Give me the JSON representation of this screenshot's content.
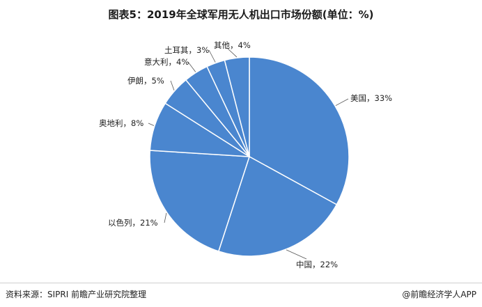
{
  "title": "图表5：2019年全球军用无人机出口市场份额(单位：%)",
  "chart_data": {
    "type": "pie",
    "title": "图表5：2019年全球军用无人机出口市场份额(单位：%)",
    "slices": [
      {
        "label": "美国",
        "value": 33,
        "text": "美国，33%"
      },
      {
        "label": "中国",
        "value": 22,
        "text": "中国，22%"
      },
      {
        "label": "以色列",
        "value": 21,
        "text": "以色列，21%"
      },
      {
        "label": "奥地利",
        "value": 8,
        "text": "奥地利，8%"
      },
      {
        "label": "伊朗",
        "value": 5,
        "text": "伊朗，5%"
      },
      {
        "label": "意大利",
        "value": 4,
        "text": "意大利，4%"
      },
      {
        "label": "土耳其",
        "value": 3,
        "text": "土耳其，3%"
      },
      {
        "label": "其他",
        "value": 4,
        "text": "其他，4%"
      }
    ],
    "colors": {
      "fill": "#4a86cf",
      "edge": "#ffffff"
    }
  },
  "footer": {
    "source": "资料来源：SIPRI 前瞻产业研究院整理",
    "brand": "@前瞻经济学人APP"
  }
}
